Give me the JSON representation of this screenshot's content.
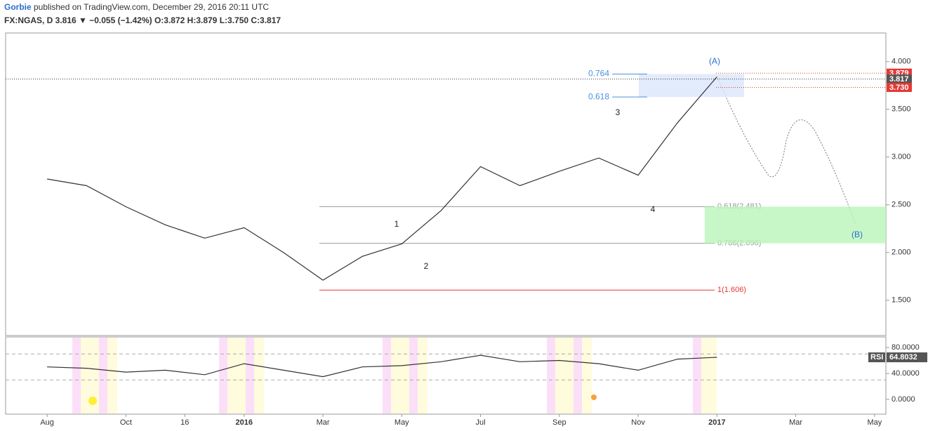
{
  "chart_data": [
    {
      "type": "line",
      "title": "Gorbie published on TradingView.com, December 29, 2016 20:11 UTC",
      "subtitle": "FX:NGAS, D 3.816 ▼ −0.055 (−1.42%) O:3.872 H:3.879 L:3.750 C:3.817",
      "x": [
        "2015-08",
        "2015-09",
        "2015-10",
        "2015-11",
        "2015-12",
        "2016-01",
        "2016-02",
        "2016-03",
        "2016-04",
        "2016-05",
        "2016-06",
        "2016-07",
        "2016-08",
        "2016-09",
        "2016-10",
        "2016-11",
        "2016-12",
        "2017-01"
      ],
      "values": [
        2.77,
        2.7,
        2.48,
        2.29,
        2.15,
        2.26,
        2.0,
        1.71,
        1.96,
        2.09,
        2.44,
        2.9,
        2.7,
        2.85,
        2.99,
        2.81,
        3.36,
        3.84
      ],
      "color": "#333333",
      "xlim": [
        "2015-07",
        "2017-06"
      ],
      "xticks": [
        {
          "value": "2015-08",
          "label": "Aug"
        },
        {
          "value": "2015-10",
          "label": "Oct"
        },
        {
          "value": "2015-11-16",
          "label": "16"
        },
        {
          "value": "2016-01",
          "label": "2016"
        },
        {
          "value": "2016-03",
          "label": "Mar"
        },
        {
          "value": "2016-05",
          "label": "May"
        },
        {
          "value": "2016-07",
          "label": "Jul"
        },
        {
          "value": "2016-09",
          "label": "Sep"
        },
        {
          "value": "2016-11",
          "label": "Nov"
        },
        {
          "value": "2017-01",
          "label": "2017"
        },
        {
          "value": "2017-03",
          "label": "Mar"
        },
        {
          "value": "2017-05",
          "label": "May"
        }
      ],
      "ylim": [
        1.13,
        4.3
      ],
      "yticks": [
        {
          "value": 1.5,
          "label": "1.500"
        },
        {
          "value": 2.0,
          "label": "2.000"
        },
        {
          "value": 2.5,
          "label": "2.500"
        },
        {
          "value": 3.0,
          "label": "3.000"
        },
        {
          "value": 3.5,
          "label": "3.500"
        },
        {
          "value": 4.0,
          "label": "4.000"
        }
      ],
      "levels": [
        {
          "label": "0.618(2.481)",
          "value": 2.481,
          "color": "#999999"
        },
        {
          "label": "0.786(2.096)",
          "value": 2.096,
          "color": "#999999"
        },
        {
          "label": "1(1.606)",
          "value": 1.606,
          "color": "#e53935"
        }
      ],
      "fib_ab": [
        {
          "ratio": 0.764,
          "price": 3.87
        },
        {
          "ratio": 0.618,
          "price": 3.63
        }
      ],
      "price_labels": [
        {
          "value": 3.879,
          "label": "3.879",
          "color": "#e53935"
        },
        {
          "value": 3.817,
          "label": "3.817",
          "color": "#555555"
        },
        {
          "value": 3.73,
          "label": "3.730",
          "color": "#e53935"
        }
      ],
      "wave_labels": [
        "1",
        "2",
        "3",
        "4",
        "(A)",
        "(B)"
      ]
    },
    {
      "type": "line",
      "name": "RSI",
      "x": [
        "2015-08",
        "2015-09",
        "2015-10",
        "2015-11",
        "2015-12",
        "2016-01",
        "2016-02",
        "2016-03",
        "2016-04",
        "2016-05",
        "2016-06",
        "2016-07",
        "2016-08",
        "2016-09",
        "2016-10",
        "2016-11",
        "2016-12",
        "2017-01"
      ],
      "values": [
        50,
        48,
        42,
        45,
        38,
        55,
        45,
        35,
        50,
        52,
        58,
        68,
        58,
        60,
        55,
        45,
        62,
        64.8032
      ],
      "color": "#333333",
      "xlim": [
        "2015-07",
        "2017-06"
      ],
      "ylim": [
        -22.7,
        96.2
      ],
      "yticks": [
        {
          "value": 0,
          "label": "0.0000"
        },
        {
          "value": 40,
          "label": "40.0000"
        },
        {
          "value": 80,
          "label": "80.0000"
        }
      ],
      "bands": [
        30,
        70
      ],
      "last": 64.8032
    }
  ]
}
